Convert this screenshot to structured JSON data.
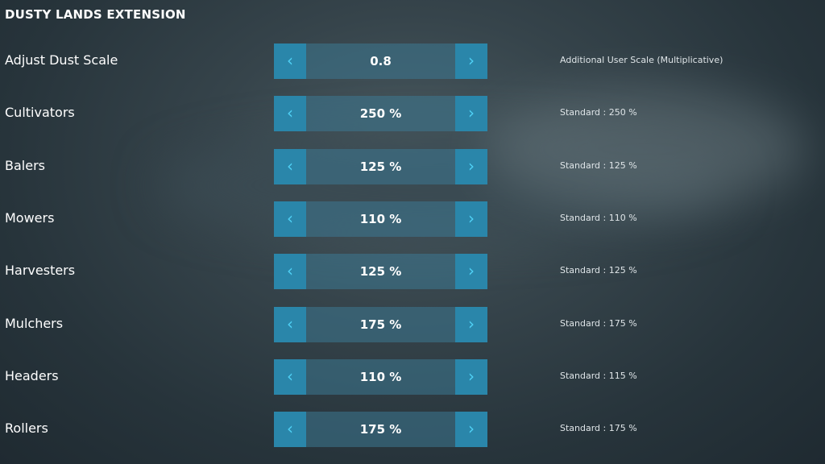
{
  "title": "DUSTY LANDS EXTENSION",
  "colors": {
    "arrow_bg": "#2a86aa",
    "arrow_glyph": "#4fd0f5"
  },
  "icons": {
    "decrease": "chevron-left-icon",
    "increase": "chevron-right-icon"
  },
  "rows": [
    {
      "label": "Adjust Dust Scale",
      "value": "0.8",
      "desc": "Additional User Scale (Multiplicative)"
    },
    {
      "label": "Cultivators",
      "value": "250 %",
      "desc": "Standard : 250 %"
    },
    {
      "label": "Balers",
      "value": "125 %",
      "desc": "Standard : 125 %"
    },
    {
      "label": "Mowers",
      "value": "110 %",
      "desc": "Standard : 110 %"
    },
    {
      "label": "Harvesters",
      "value": "125 %",
      "desc": "Standard : 125 %"
    },
    {
      "label": "Mulchers",
      "value": "175 %",
      "desc": "Standard : 175 %"
    },
    {
      "label": "Headers",
      "value": "110 %",
      "desc": "Standard : 115 %"
    },
    {
      "label": "Rollers",
      "value": "175 %",
      "desc": "Standard : 175 %"
    }
  ]
}
